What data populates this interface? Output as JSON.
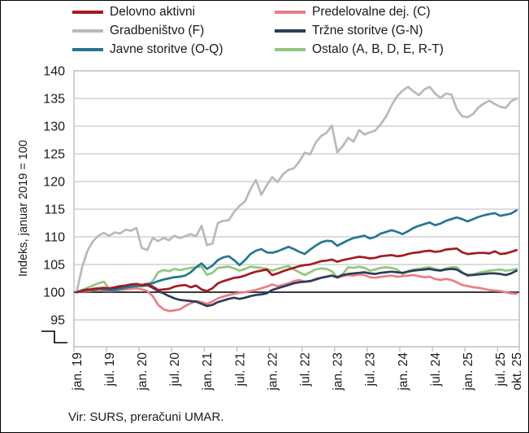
{
  "footer": {
    "source_note": "Vir: SURS, preračuni UMAR."
  },
  "chart_data": {
    "type": "line",
    "title": "",
    "ylabel": "Indeks, januar 2019 = 100",
    "xlabel": "",
    "grid": true,
    "legend_position": "top",
    "y_axis": {
      "label": "Indeks, januar 2019 = 100",
      "ylim": [
        95,
        140
      ],
      "ticks": [
        95,
        100,
        105,
        110,
        115,
        120,
        125,
        130,
        135,
        140
      ],
      "baseline": 100,
      "axis_break_below": 95
    },
    "x_axis": {
      "n_points": 82,
      "first_point": "jan. 19",
      "last_point": "okt. 25",
      "tick_labels": [
        {
          "label": "jan. 19",
          "month_index": 0
        },
        {
          "label": "jul. 19",
          "month_index": 6
        },
        {
          "label": "jan. 20",
          "month_index": 12
        },
        {
          "label": "jul. 20",
          "month_index": 18
        },
        {
          "label": "jan. 21",
          "month_index": 24
        },
        {
          "label": "jul. 21",
          "month_index": 30
        },
        {
          "label": "jan. 22",
          "month_index": 36
        },
        {
          "label": "jul. 22",
          "month_index": 42
        },
        {
          "label": "jan. 23",
          "month_index": 48
        },
        {
          "label": "jul. 23",
          "month_index": 54
        },
        {
          "label": "jan. 24",
          "month_index": 60
        },
        {
          "label": "jul. 24",
          "month_index": 66
        },
        {
          "label": "jan. 25",
          "month_index": 72
        },
        {
          "label": "jul. 25",
          "month_index": 78
        },
        {
          "label": "okt. 25",
          "month_index": 81
        }
      ]
    },
    "series": [
      {
        "name": "Delovno aktivni",
        "color": "#a21c21",
        "values": [
          100,
          100.2,
          100.4,
          100.6,
          100.7,
          100.8,
          100.7,
          100.9,
          101.1,
          101.2,
          101.4,
          101.5,
          101.3,
          101.5,
          101.0,
          100.4,
          100.5,
          100.6,
          101.0,
          101.2,
          101.3,
          100.9,
          101.2,
          100.5,
          100.2,
          100.7,
          101.6,
          102.0,
          102.3,
          102.6,
          102.7,
          103.0,
          103.4,
          103.7,
          103.9,
          104.1,
          103.1,
          103.4,
          103.8,
          104.1,
          104.4,
          104.7,
          104.9,
          105.0,
          105.3,
          105.6,
          105.7,
          105.9,
          105.5,
          105.8,
          106.0,
          106.2,
          106.4,
          106.3,
          106.1,
          106.2,
          106.5,
          106.6,
          106.7,
          106.5,
          106.6,
          106.9,
          107.1,
          107.2,
          107.4,
          107.5,
          107.3,
          107.4,
          107.7,
          107.8,
          107.9,
          107.2,
          106.9,
          107.0,
          107.1,
          107.1,
          107.0,
          107.4,
          106.9,
          107.0,
          107.3,
          107.6
        ]
      },
      {
        "name": "Predelovalne dej. (C)",
        "color": "#e87f84",
        "values": [
          100,
          100.1,
          100.2,
          100.3,
          100.4,
          100.3,
          100.2,
          100.3,
          100.4,
          100.5,
          100.6,
          100.7,
          100.5,
          100.2,
          99.3,
          97.7,
          96.9,
          96.6,
          96.7,
          96.9,
          97.5,
          98.0,
          98.4,
          98.2,
          97.9,
          98.3,
          98.9,
          99.2,
          99.5,
          99.7,
          99.9,
          100.0,
          100.2,
          100.4,
          100.7,
          101.0,
          101.4,
          101.1,
          101.3,
          101.6,
          102.0,
          102.2,
          101.9,
          102.0,
          102.4,
          102.6,
          102.8,
          103.0,
          102.6,
          102.9,
          103.1,
          103.0,
          103.2,
          103.1,
          102.7,
          102.6,
          102.8,
          102.9,
          103.0,
          102.8,
          102.9,
          103.0,
          103.1,
          102.9,
          102.7,
          102.8,
          102.4,
          102.2,
          102.4,
          102.2,
          101.8,
          101.3,
          101.1,
          100.9,
          100.8,
          100.6,
          100.4,
          100.3,
          100.2,
          100.0,
          99.8,
          99.7
        ]
      },
      {
        "name": "Gradbeništvo (F)",
        "color": "#b4babe",
        "values": [
          100,
          104.5,
          107.5,
          109.2,
          110.2,
          110.7,
          110.2,
          110.8,
          110.6,
          111.3,
          111.1,
          111.6,
          108.0,
          107.6,
          109.8,
          109.2,
          109.8,
          109.4,
          110.2,
          109.8,
          110.1,
          110.5,
          110.1,
          112.0,
          108.5,
          108.8,
          112.5,
          112.9,
          113.0,
          114.5,
          115.6,
          116.4,
          118.6,
          120.3,
          117.6,
          119.3,
          120.8,
          119.9,
          121.3,
          122.1,
          122.4,
          123.6,
          125.2,
          124.9,
          127.0,
          128.2,
          128.8,
          130.1,
          125.3,
          126.4,
          127.9,
          127.2,
          129.3,
          128.5,
          128.9,
          129.2,
          130.4,
          131.8,
          133.8,
          135.4,
          136.4,
          137.1,
          136.3,
          135.6,
          136.6,
          137.1,
          135.9,
          135.1,
          135.9,
          135.7,
          133.1,
          131.8,
          131.6,
          132.2,
          133.4,
          134.1,
          134.6,
          134.0,
          133.5,
          133.3,
          134.5,
          135.0
        ]
      },
      {
        "name": "Tržne storitve (G-N)",
        "color": "#2d3d59",
        "values": [
          100,
          100.3,
          100.5,
          100.4,
          100.6,
          100.7,
          100.5,
          100.6,
          100.8,
          100.9,
          101.0,
          101.1,
          101.2,
          101.3,
          100.8,
          100.2,
          99.8,
          99.3,
          98.9,
          98.6,
          98.5,
          98.4,
          98.3,
          97.9,
          97.5,
          97.7,
          98.2,
          98.5,
          98.8,
          99.0,
          98.8,
          99.0,
          99.3,
          99.5,
          99.6,
          99.8,
          100.4,
          100.7,
          101.0,
          101.3,
          101.6,
          101.8,
          101.9,
          102.0,
          102.3,
          102.6,
          102.8,
          103.0,
          102.7,
          103.1,
          103.3,
          103.4,
          103.5,
          103.6,
          103.4,
          103.3,
          103.5,
          103.6,
          103.7,
          103.6,
          103.5,
          103.7,
          103.9,
          104.0,
          104.1,
          104.2,
          104.0,
          103.9,
          104.1,
          104.2,
          104.1,
          103.5,
          103.1,
          103.1,
          103.2,
          103.3,
          103.4,
          103.4,
          103.3,
          103.1,
          103.4,
          103.9
        ]
      },
      {
        "name": "Javne storitve (O-Q)",
        "color": "#23788f",
        "values": [
          100,
          100.2,
          100.4,
          100.5,
          100.6,
          100.5,
          100.3,
          100.4,
          100.6,
          100.8,
          101.0,
          101.1,
          101.3,
          101.5,
          101.6,
          102.0,
          102.3,
          102.5,
          102.7,
          102.8,
          103.0,
          103.6,
          104.5,
          105.2,
          104.2,
          104.8,
          105.8,
          106.3,
          106.5,
          105.8,
          104.9,
          105.8,
          106.9,
          107.5,
          107.8,
          107.2,
          107.1,
          107.4,
          107.8,
          108.2,
          107.8,
          107.3,
          106.9,
          107.7,
          108.4,
          109.0,
          109.3,
          109.2,
          108.4,
          108.9,
          109.4,
          109.8,
          110.0,
          110.2,
          109.7,
          110.0,
          110.6,
          110.9,
          111.2,
          110.9,
          110.5,
          111.0,
          111.6,
          112.0,
          112.3,
          112.6,
          112.1,
          112.4,
          112.9,
          113.2,
          113.5,
          113.2,
          112.8,
          113.2,
          113.6,
          113.9,
          114.1,
          114.3,
          113.8,
          114.0,
          114.2,
          114.8
        ]
      },
      {
        "name": "Ostalo (A, B, D, E, R-T)",
        "color": "#90c87d",
        "values": [
          100,
          100.4,
          100.8,
          101.2,
          101.6,
          101.9,
          100.6,
          100.4,
          100.9,
          101.2,
          101.4,
          101.3,
          101.0,
          101.2,
          102.0,
          103.6,
          104.0,
          103.8,
          104.2,
          104.0,
          104.2,
          104.4,
          104.5,
          104.6,
          103.1,
          103.5,
          104.4,
          104.5,
          104.6,
          104.3,
          103.9,
          104.2,
          104.6,
          104.5,
          104.4,
          104.2,
          103.9,
          104.2,
          104.5,
          104.7,
          104.1,
          103.6,
          103.1,
          103.6,
          104.1,
          104.3,
          104.2,
          103.8,
          102.7,
          103.3,
          104.5,
          104.4,
          104.6,
          104.4,
          103.9,
          104.1,
          104.4,
          104.5,
          104.4,
          104.1,
          103.3,
          103.8,
          104.1,
          104.2,
          104.4,
          104.5,
          104.2,
          104.0,
          104.3,
          104.5,
          104.5,
          103.6,
          102.9,
          103.2,
          103.5,
          103.7,
          103.9,
          104.0,
          104.1,
          103.9,
          104.0,
          104.2
        ]
      }
    ],
    "colors": {
      "baseline": "#3a3a3a",
      "gridline": "#c8c8c8",
      "frame": "#b7bcbf"
    }
  }
}
